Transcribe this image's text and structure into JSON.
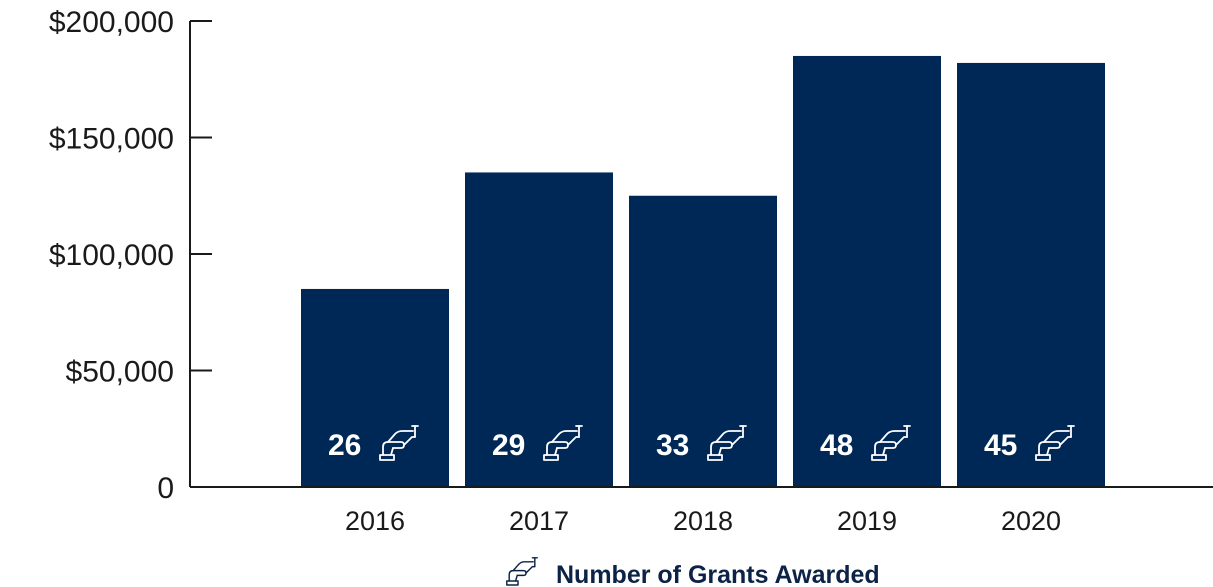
{
  "chart_data": {
    "type": "bar",
    "categories": [
      "2016",
      "2017",
      "2018",
      "2019",
      "2020"
    ],
    "values": [
      85000,
      135000,
      125000,
      185000,
      182000
    ],
    "grant_counts": [
      "26",
      "29",
      "33",
      "48",
      "45"
    ],
    "y_ticks": [
      0,
      50000,
      100000,
      150000,
      200000
    ],
    "y_tick_labels": [
      "0",
      "$50,000",
      "$100,000",
      "$150,000",
      "$200,000"
    ],
    "ylim": [
      0,
      200000
    ],
    "title": "",
    "xlabel": "",
    "ylabel": "",
    "grid": false,
    "legend": {
      "label": "Number of Grants Awarded",
      "icon": "hand-receiving-icon",
      "placement": "bottom-center"
    },
    "colors": {
      "bar": "#002856",
      "axis": "#1a1a1a",
      "legend_text": "#0c2347"
    }
  }
}
